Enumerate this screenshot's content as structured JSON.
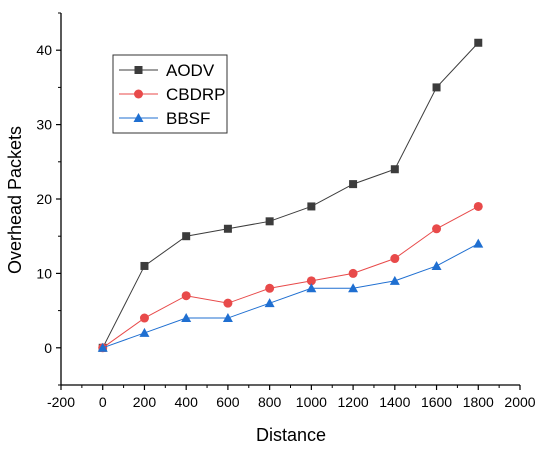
{
  "chart_data": {
    "type": "line",
    "xlabel": "Distance",
    "ylabel": "Overhead Packets",
    "xlim": [
      -200,
      2000
    ],
    "ylim": [
      -5,
      45
    ],
    "xticks": [
      -200,
      0,
      200,
      400,
      600,
      800,
      1000,
      1200,
      1400,
      1600,
      1800,
      2000
    ],
    "yticks": [
      0,
      10,
      20,
      30,
      40
    ],
    "grid": false,
    "legend_position": "top-left",
    "x": [
      0,
      200,
      400,
      600,
      800,
      1000,
      1200,
      1400,
      1600,
      1800
    ],
    "series": [
      {
        "name": "AODV",
        "values": [
          0,
          11,
          15,
          16,
          17,
          19,
          22,
          24,
          35,
          41
        ],
        "color": "#3c3c3c",
        "marker": "square"
      },
      {
        "name": "CBDRP",
        "values": [
          0,
          4,
          7,
          6,
          8,
          9,
          10,
          12,
          16,
          19
        ],
        "color": "#e84a4a",
        "marker": "circle"
      },
      {
        "name": "BBSF",
        "values": [
          0,
          2,
          4,
          4,
          6,
          8,
          8,
          9,
          11,
          14
        ],
        "color": "#1f6fd1",
        "marker": "triangle"
      }
    ]
  }
}
